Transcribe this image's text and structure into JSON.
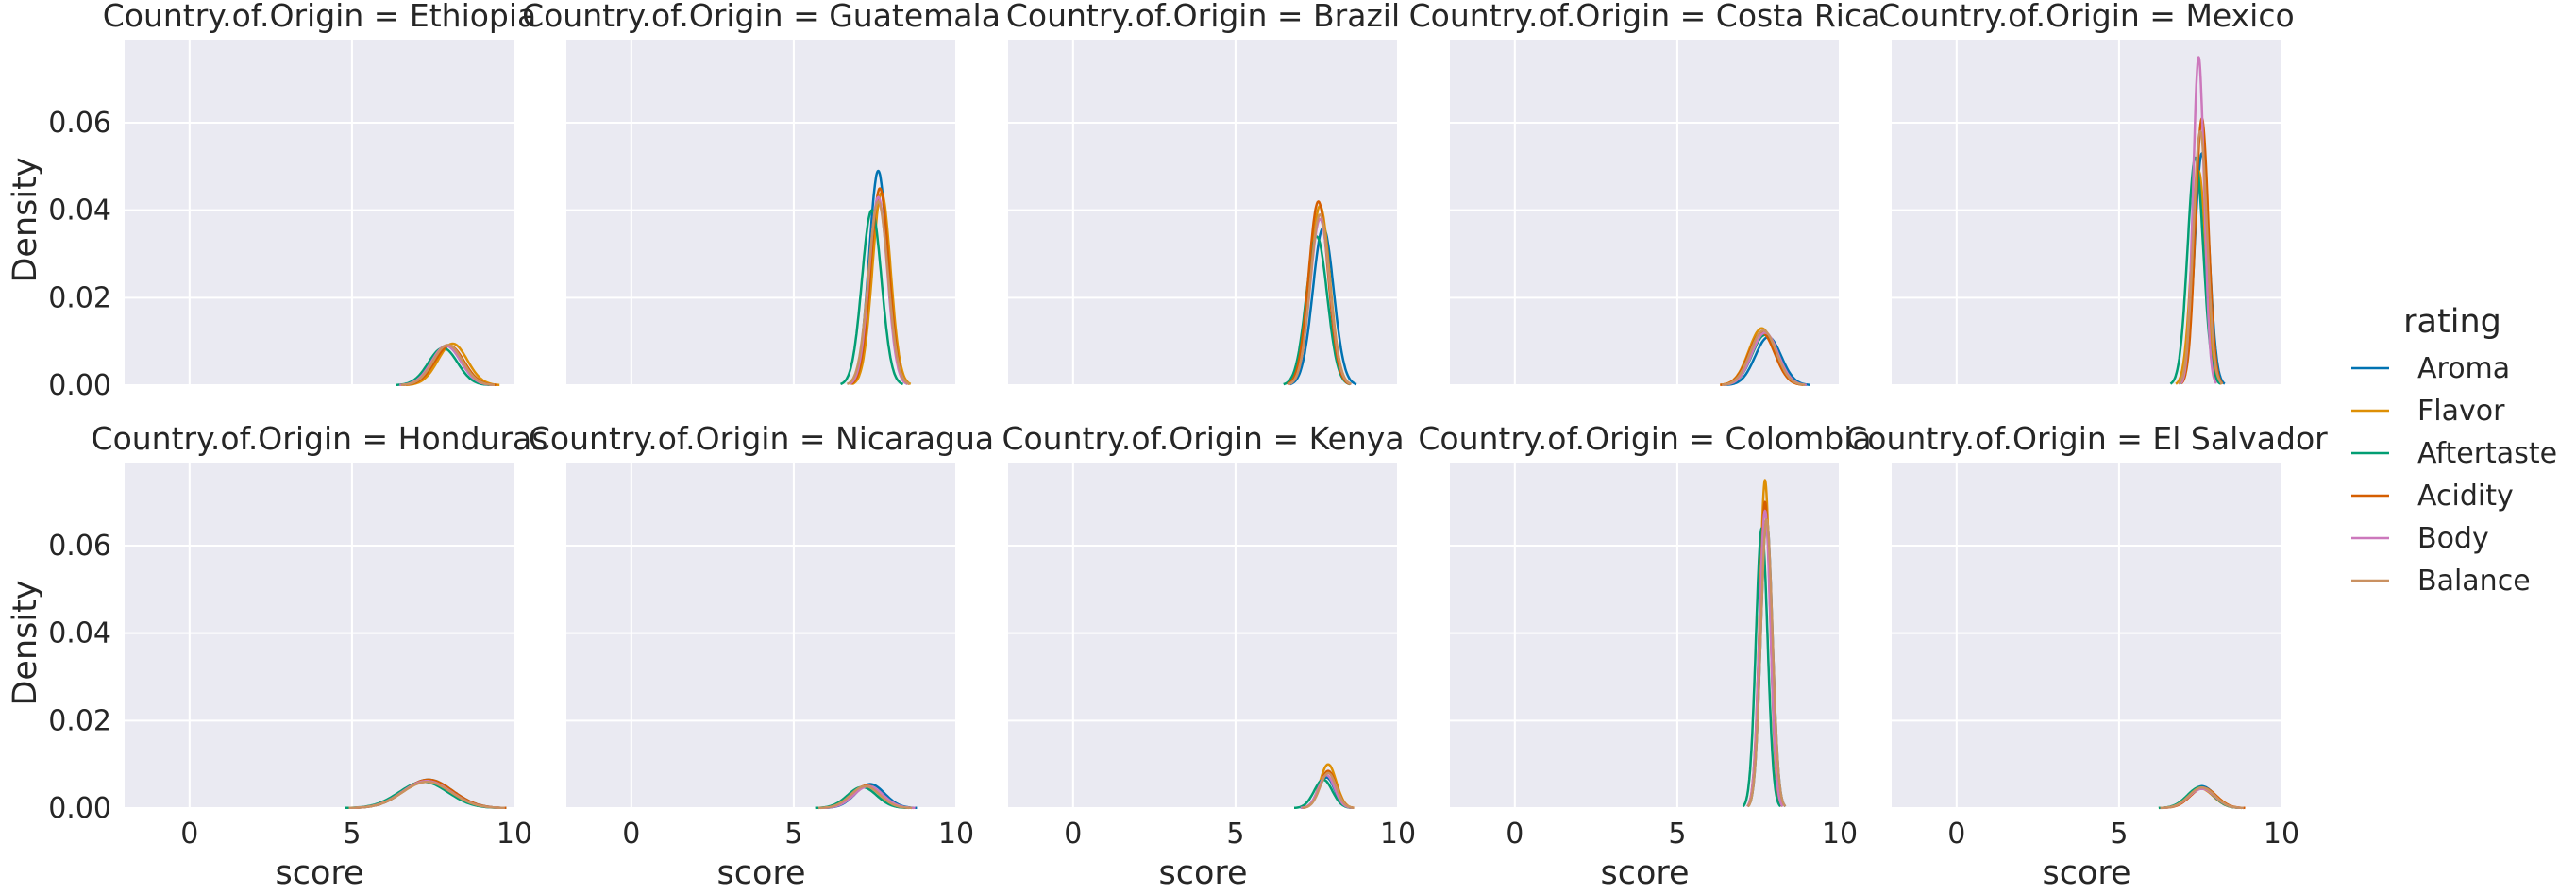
{
  "chart_data": {
    "type": "line",
    "layout": "facet grid, 2 rows x 5 columns, shared axes",
    "xlabel": "score",
    "ylabel": "Density",
    "xlim": [
      -2,
      10
    ],
    "ylim": [
      0,
      0.079
    ],
    "x_ticks": [
      "0",
      "5",
      "10"
    ],
    "y_ticks": [
      "0.00",
      "0.02",
      "0.04",
      "0.06"
    ],
    "grid": true,
    "legend": {
      "title": "rating",
      "position": "right",
      "entries": [
        "Aroma",
        "Flavor",
        "Aftertaste",
        "Acidity",
        "Body",
        "Balance"
      ]
    },
    "series_colors": {
      "Aroma": "#0173b2",
      "Flavor": "#de8f05",
      "Aftertaste": "#029e73",
      "Acidity": "#d55e00",
      "Body": "#cc78bc",
      "Balance": "#ca9161"
    },
    "panels": [
      {
        "title": "Country.of.Origin = Ethiopia",
        "series": [
          {
            "name": "Aroma",
            "peak_x": 7.9,
            "peak_density": 0.009,
            "spread": 0.45
          },
          {
            "name": "Flavor",
            "peak_x": 8.1,
            "peak_density": 0.0095,
            "spread": 0.45
          },
          {
            "name": "Aftertaste",
            "peak_x": 7.8,
            "peak_density": 0.0085,
            "spread": 0.45
          },
          {
            "name": "Acidity",
            "peak_x": 8.0,
            "peak_density": 0.009,
            "spread": 0.45
          },
          {
            "name": "Body",
            "peak_x": 7.9,
            "peak_density": 0.009,
            "spread": 0.45
          },
          {
            "name": "Balance",
            "peak_x": 7.95,
            "peak_density": 0.0092,
            "spread": 0.45
          }
        ]
      },
      {
        "title": "Country.of.Origin = Guatemala",
        "series": [
          {
            "name": "Aroma",
            "peak_x": 7.6,
            "peak_density": 0.049,
            "spread": 0.28
          },
          {
            "name": "Flavor",
            "peak_x": 7.7,
            "peak_density": 0.044,
            "spread": 0.28
          },
          {
            "name": "Aftertaste",
            "peak_x": 7.4,
            "peak_density": 0.04,
            "spread": 0.3
          },
          {
            "name": "Acidity",
            "peak_x": 7.65,
            "peak_density": 0.045,
            "spread": 0.28
          },
          {
            "name": "Body",
            "peak_x": 7.6,
            "peak_density": 0.043,
            "spread": 0.28
          },
          {
            "name": "Balance",
            "peak_x": 7.6,
            "peak_density": 0.042,
            "spread": 0.3
          }
        ]
      },
      {
        "title": "Country.of.Origin = Brazil",
        "series": [
          {
            "name": "Aroma",
            "peak_x": 7.7,
            "peak_density": 0.036,
            "spread": 0.32
          },
          {
            "name": "Flavor",
            "peak_x": 7.6,
            "peak_density": 0.041,
            "spread": 0.3
          },
          {
            "name": "Aftertaste",
            "peak_x": 7.5,
            "peak_density": 0.034,
            "spread": 0.32
          },
          {
            "name": "Acidity",
            "peak_x": 7.55,
            "peak_density": 0.042,
            "spread": 0.3
          },
          {
            "name": "Body",
            "peak_x": 7.6,
            "peak_density": 0.038,
            "spread": 0.3
          },
          {
            "name": "Balance",
            "peak_x": 7.6,
            "peak_density": 0.039,
            "spread": 0.3
          }
        ]
      },
      {
        "title": "Country.of.Origin = Costa Rica",
        "series": [
          {
            "name": "Aroma",
            "peak_x": 7.8,
            "peak_density": 0.011,
            "spread": 0.4
          },
          {
            "name": "Flavor",
            "peak_x": 7.6,
            "peak_density": 0.013,
            "spread": 0.4
          },
          {
            "name": "Aftertaste",
            "peak_x": 7.7,
            "peak_density": 0.0115,
            "spread": 0.4
          },
          {
            "name": "Acidity",
            "peak_x": 7.6,
            "peak_density": 0.012,
            "spread": 0.4
          },
          {
            "name": "Body",
            "peak_x": 7.7,
            "peak_density": 0.012,
            "spread": 0.4
          },
          {
            "name": "Balance",
            "peak_x": 7.65,
            "peak_density": 0.0125,
            "spread": 0.4
          }
        ]
      },
      {
        "title": "Country.of.Origin = Mexico",
        "series": [
          {
            "name": "Aroma",
            "peak_x": 7.55,
            "peak_density": 0.053,
            "spread": 0.22
          },
          {
            "name": "Flavor",
            "peak_x": 7.45,
            "peak_density": 0.049,
            "spread": 0.22
          },
          {
            "name": "Aftertaste",
            "peak_x": 7.35,
            "peak_density": 0.052,
            "spread": 0.24
          },
          {
            "name": "Acidity",
            "peak_x": 7.55,
            "peak_density": 0.061,
            "spread": 0.2
          },
          {
            "name": "Body",
            "peak_x": 7.45,
            "peak_density": 0.075,
            "spread": 0.17
          },
          {
            "name": "Balance",
            "peak_x": 7.5,
            "peak_density": 0.058,
            "spread": 0.21
          }
        ]
      },
      {
        "title": "Country.of.Origin = Honduras",
        "series": [
          {
            "name": "Aroma",
            "peak_x": 7.35,
            "peak_density": 0.0065,
            "spread": 0.75
          },
          {
            "name": "Flavor",
            "peak_x": 7.3,
            "peak_density": 0.006,
            "spread": 0.75
          },
          {
            "name": "Aftertaste",
            "peak_x": 7.2,
            "peak_density": 0.006,
            "spread": 0.75
          },
          {
            "name": "Acidity",
            "peak_x": 7.35,
            "peak_density": 0.0065,
            "spread": 0.75
          },
          {
            "name": "Body",
            "peak_x": 7.3,
            "peak_density": 0.0062,
            "spread": 0.75
          },
          {
            "name": "Balance",
            "peak_x": 7.3,
            "peak_density": 0.006,
            "spread": 0.75
          }
        ]
      },
      {
        "title": "Country.of.Origin = Nicaragua",
        "series": [
          {
            "name": "Aroma",
            "peak_x": 7.35,
            "peak_density": 0.0055,
            "spread": 0.45
          },
          {
            "name": "Flavor",
            "peak_x": 7.2,
            "peak_density": 0.005,
            "spread": 0.45
          },
          {
            "name": "Aftertaste",
            "peak_x": 7.1,
            "peak_density": 0.0048,
            "spread": 0.45
          },
          {
            "name": "Acidity",
            "peak_x": 7.25,
            "peak_density": 0.0052,
            "spread": 0.45
          },
          {
            "name": "Body",
            "peak_x": 7.3,
            "peak_density": 0.005,
            "spread": 0.45
          },
          {
            "name": "Balance",
            "peak_x": 7.2,
            "peak_density": 0.005,
            "spread": 0.45
          }
        ]
      },
      {
        "title": "Country.of.Origin = Kenya",
        "series": [
          {
            "name": "Aroma",
            "peak_x": 7.8,
            "peak_density": 0.007,
            "spread": 0.25
          },
          {
            "name": "Flavor",
            "peak_x": 7.85,
            "peak_density": 0.01,
            "spread": 0.25
          },
          {
            "name": "Aftertaste",
            "peak_x": 7.7,
            "peak_density": 0.0065,
            "spread": 0.28
          },
          {
            "name": "Acidity",
            "peak_x": 7.85,
            "peak_density": 0.0085,
            "spread": 0.25
          },
          {
            "name": "Body",
            "peak_x": 7.8,
            "peak_density": 0.0075,
            "spread": 0.25
          },
          {
            "name": "Balance",
            "peak_x": 7.85,
            "peak_density": 0.008,
            "spread": 0.25
          }
        ]
      },
      {
        "title": "Country.of.Origin = Colombia",
        "series": [
          {
            "name": "Aroma",
            "peak_x": 7.75,
            "peak_density": 0.066,
            "spread": 0.18
          },
          {
            "name": "Flavor",
            "peak_x": 7.7,
            "peak_density": 0.075,
            "spread": 0.16
          },
          {
            "name": "Aftertaste",
            "peak_x": 7.6,
            "peak_density": 0.064,
            "spread": 0.18
          },
          {
            "name": "Acidity",
            "peak_x": 7.7,
            "peak_density": 0.07,
            "spread": 0.17
          },
          {
            "name": "Body",
            "peak_x": 7.7,
            "peak_density": 0.068,
            "spread": 0.17
          },
          {
            "name": "Balance",
            "peak_x": 7.75,
            "peak_density": 0.066,
            "spread": 0.18
          }
        ]
      },
      {
        "title": "Country.of.Origin = El Salvador",
        "series": [
          {
            "name": "Aroma",
            "peak_x": 7.55,
            "peak_density": 0.005,
            "spread": 0.4
          },
          {
            "name": "Flavor",
            "peak_x": 7.5,
            "peak_density": 0.0045,
            "spread": 0.4
          },
          {
            "name": "Aftertaste",
            "peak_x": 7.5,
            "peak_density": 0.0048,
            "spread": 0.4
          },
          {
            "name": "Acidity",
            "peak_x": 7.6,
            "peak_density": 0.0046,
            "spread": 0.4
          },
          {
            "name": "Body",
            "peak_x": 7.55,
            "peak_density": 0.0044,
            "spread": 0.4
          },
          {
            "name": "Balance",
            "peak_x": 7.55,
            "peak_density": 0.0047,
            "spread": 0.4
          }
        ]
      }
    ]
  }
}
